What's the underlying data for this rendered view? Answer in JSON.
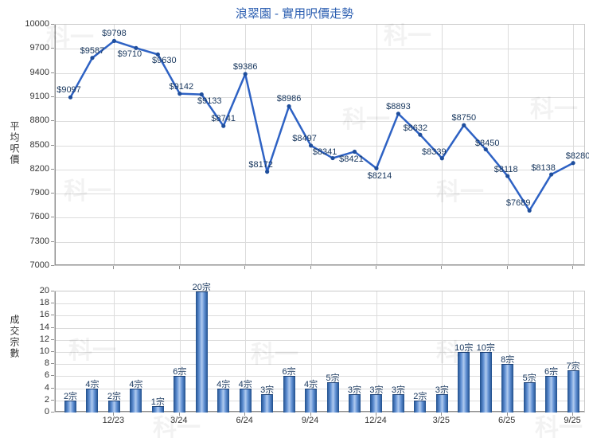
{
  "title": "浪翠園 - 實用呎價走勢",
  "watermark_text": "科一",
  "colors": {
    "title": "#2A5DB0",
    "line": "#2E62C4",
    "marker": "#1F4E9C",
    "data_label": "#17365D",
    "bar_edge": "#1F4E8C",
    "bar_center": "#AFCAEF",
    "grid": "#DCDCDC",
    "axis": "#8F8F8F",
    "tick_label": "#333333"
  },
  "chart_data": [
    {
      "type": "line",
      "title": "浪翠園 - 實用呎價走勢",
      "ylabel": "平均呎價",
      "ylim": [
        7000,
        10000
      ],
      "ytick_step": 300,
      "ytick_labels": [
        "10000",
        "9700",
        "9400",
        "9100",
        "8800",
        "8500",
        "8200",
        "7900",
        "7600",
        "7300",
        "7000"
      ],
      "grid": true,
      "legend": "none",
      "x_tick_labels": [
        "12/23",
        "3/24",
        "6/24",
        "9/24",
        "12/24",
        "3/25",
        "6/25",
        "9/25"
      ],
      "x_tick_indices": [
        2,
        5,
        8,
        11,
        14,
        17,
        20,
        23
      ],
      "values": [
        9097,
        9587,
        9798,
        9710,
        9630,
        9142,
        9133,
        8741,
        9386,
        8172,
        8986,
        8497,
        8341,
        8421,
        8214,
        8893,
        8632,
        8339,
        8750,
        8450,
        8118,
        7689,
        8138,
        8280
      ],
      "point_labels": [
        "$9097",
        "$9587",
        "$9798",
        "$9710",
        "$9630",
        "$9142",
        "$9133",
        "$8741",
        "$9386",
        "$8172",
        "$8986",
        "$8497",
        "$8341",
        "$8421",
        "$8214",
        "$8893",
        "$8632",
        "$8339",
        "$8750",
        "$8450",
        "$8118",
        "$7689",
        "$8138",
        "$8280"
      ]
    },
    {
      "type": "bar",
      "ylabel": "成交宗數",
      "ylim": [
        0,
        20
      ],
      "ytick_step": 2,
      "ytick_labels": [
        "20",
        "18",
        "16",
        "14",
        "12",
        "10",
        "8",
        "6",
        "4",
        "2",
        "0"
      ],
      "grid": true,
      "legend": "none",
      "x_tick_labels": [
        "12/23",
        "3/24",
        "6/24",
        "9/24",
        "12/24",
        "3/25",
        "6/25",
        "9/25"
      ],
      "x_tick_indices": [
        2,
        5,
        8,
        11,
        14,
        17,
        20,
        23
      ],
      "values": [
        2,
        4,
        2,
        4,
        1,
        6,
        20,
        4,
        4,
        3,
        6,
        4,
        5,
        3,
        3,
        3,
        2,
        3,
        10,
        10,
        8,
        5,
        6,
        7
      ],
      "bar_labels": [
        "2宗",
        "4宗",
        "2宗",
        "4宗",
        "1宗",
        "6宗",
        "20宗",
        "4宗",
        "4宗",
        "3宗",
        "6宗",
        "4宗",
        "5宗",
        "3宗",
        "3宗",
        "3宗",
        "2宗",
        "3宗",
        "10宗",
        "10宗",
        "8宗",
        "5宗",
        "6宗",
        "7宗"
      ]
    }
  ]
}
